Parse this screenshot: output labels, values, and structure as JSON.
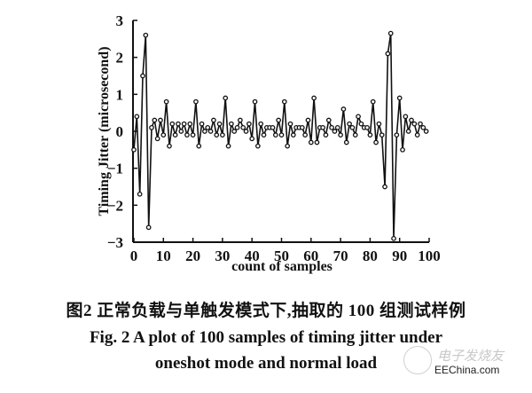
{
  "chart_data": {
    "type": "line",
    "title": "",
    "xlabel": "count of samples",
    "ylabel": "Timing Jitter (microsecond)",
    "xlim": [
      0,
      100
    ],
    "ylim": [
      -3,
      3
    ],
    "x_ticks": [
      0,
      10,
      20,
      30,
      40,
      50,
      60,
      70,
      80,
      90,
      100
    ],
    "y_ticks": [
      -3,
      -2,
      -1,
      0,
      1,
      2,
      3
    ],
    "grid": false,
    "legend": null,
    "marker": "open-circle",
    "series": [
      {
        "name": "timing jitter",
        "x": [
          0,
          1,
          2,
          3,
          4,
          5,
          6,
          7,
          8,
          9,
          10,
          11,
          12,
          13,
          14,
          15,
          16,
          17,
          18,
          19,
          20,
          21,
          22,
          23,
          24,
          25,
          26,
          27,
          28,
          29,
          30,
          31,
          32,
          33,
          34,
          35,
          36,
          37,
          38,
          39,
          40,
          41,
          42,
          43,
          44,
          45,
          46,
          47,
          48,
          49,
          50,
          51,
          52,
          53,
          54,
          55,
          56,
          57,
          58,
          59,
          60,
          61,
          62,
          63,
          64,
          65,
          66,
          67,
          68,
          69,
          70,
          71,
          72,
          73,
          74,
          75,
          76,
          77,
          78,
          79,
          80,
          81,
          82,
          83,
          84,
          85,
          86,
          87,
          88,
          89,
          90,
          91,
          92,
          93,
          94,
          95,
          96,
          97,
          98,
          99
        ],
        "values": [
          -0.5,
          0.4,
          -1.7,
          1.5,
          2.6,
          -2.6,
          0.1,
          0.3,
          -0.2,
          0.3,
          -0.1,
          0.8,
          -0.4,
          0.2,
          -0.1,
          0.2,
          0.0,
          0.2,
          -0.1,
          0.2,
          -0.1,
          0.8,
          -0.4,
          0.2,
          0.0,
          0.1,
          0.0,
          0.3,
          -0.1,
          0.2,
          -0.1,
          0.9,
          -0.4,
          0.2,
          0.0,
          0.1,
          0.3,
          0.1,
          0.0,
          0.2,
          -0.2,
          0.8,
          -0.4,
          0.2,
          -0.1,
          0.1,
          0.1,
          0.1,
          -0.1,
          0.3,
          -0.1,
          0.8,
          -0.4,
          0.2,
          -0.1,
          0.1,
          0.1,
          0.1,
          -0.1,
          0.3,
          -0.3,
          0.9,
          -0.3,
          0.1,
          0.1,
          -0.1,
          0.3,
          0.1,
          0.0,
          0.1,
          -0.1,
          0.6,
          -0.3,
          0.2,
          0.1,
          -0.1,
          0.4,
          0.2,
          0.1,
          0.1,
          -0.1,
          0.8,
          -0.3,
          0.2,
          -0.1,
          -1.5,
          2.1,
          2.65,
          -2.9,
          -0.1,
          0.9,
          -0.5,
          0.4,
          0.0,
          0.3,
          0.2,
          -0.1,
          0.2,
          0.1,
          0.0
        ]
      }
    ]
  },
  "captions": {
    "cn": "图2   正常负载与单触发模式下,抽取的 100 组测试样例",
    "en_line1": "Fig. 2   A plot of 100 samples of timing jitter under",
    "en_line2": "oneshot mode and normal load"
  },
  "watermark": {
    "cn": "电子发烧友",
    "text": "EEChina.com"
  },
  "colors": {
    "line": "#111111",
    "background": "#ffffff"
  }
}
